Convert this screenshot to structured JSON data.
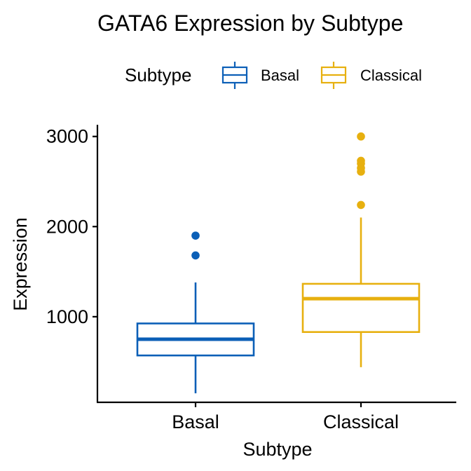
{
  "chart_data": {
    "type": "boxplot",
    "title": "GATA6 Expression by Subtype",
    "xlabel": "Subtype",
    "ylabel": "Expression",
    "ylim": [
      50,
      3130
    ],
    "yticks": [
      1000,
      2000,
      3000
    ],
    "yticklabels": [
      "1000",
      "2000",
      "3000"
    ],
    "legend": {
      "title": "Subtype",
      "position": "top"
    },
    "grid": false,
    "series": [
      {
        "name": "Basal",
        "color": "#0B5FB7",
        "whisker_low": 150,
        "q1": 570,
        "median": 750,
        "q3": 925,
        "whisker_high": 1380,
        "outliers": [
          1680,
          1900
        ]
      },
      {
        "name": "Classical",
        "color": "#E7B00F",
        "whisker_low": 440,
        "q1": 830,
        "median": 1200,
        "q3": 1365,
        "whisker_high": 2100,
        "outliers": [
          2240,
          2610,
          2650,
          2700,
          2730,
          3000
        ]
      }
    ]
  }
}
